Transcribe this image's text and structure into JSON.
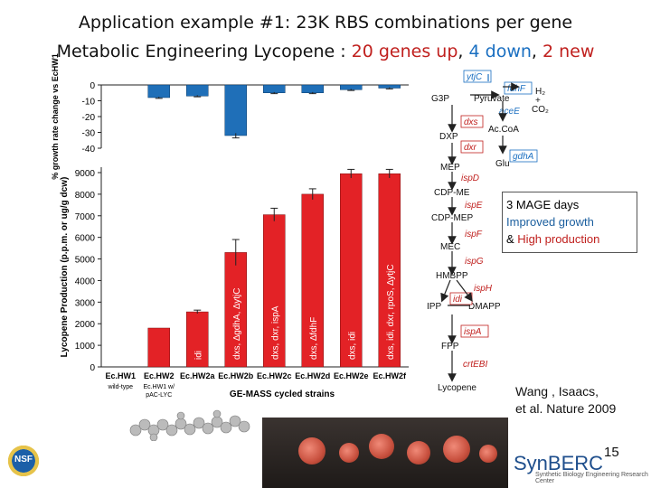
{
  "title_line1": "Application example #1:  23K RBS combinations per gene",
  "title_line2_prefix": "Metabolic Engineering  Lycopene : ",
  "title_line2_up": "20 genes up",
  "title_line2_sep1": ", ",
  "title_line2_down": "4 down",
  "title_line2_sep2": ", ",
  "title_line2_new": "2 new",
  "mage_box": {
    "line1": "3 MAGE days",
    "line2": "Improved growth",
    "line3_amp": "& ",
    "line3": "High production"
  },
  "citation": {
    "line1": "Wang , Isaacs,",
    "line2": "et al.  Nature 2009"
  },
  "page_number": "15",
  "logo_synberc": "SynBERC",
  "logo_synberc_sub": "Synthetic Biology Engineering Research Center",
  "logo_nsf": "NSF",
  "colors": {
    "growth_bar": "#1f6fb8",
    "production_bar": "#e32226",
    "pathway_red": "#c0201e",
    "pathway_blue": "#1a6fc1"
  },
  "chart_data": [
    {
      "type": "bar",
      "ylabel": "% growth rate change vs EcHW1",
      "ylim": [
        -40,
        0
      ],
      "yticks": [
        "0",
        "-10",
        "-20",
        "-30",
        "-40"
      ],
      "categories": [
        "Ec.HW1",
        "Ec.HW2",
        "Ec.HW2a",
        "Ec.HW2b",
        "Ec.HW2c",
        "Ec.HW2d",
        "Ec.HW2e",
        "Ec.HW2f"
      ],
      "values": [
        null,
        -8,
        -7,
        -32,
        -5,
        -5,
        -3,
        -2
      ],
      "error": [
        null,
        0.5,
        0.5,
        1.5,
        0.5,
        0.5,
        0.5,
        0.5
      ],
      "color": "#1f6fb8"
    },
    {
      "type": "bar",
      "ylabel": "Lycopene Production (p.p.m. or ug/g dcw)",
      "xlabel": "GE-MASS cycled strains",
      "ylim": [
        0,
        9000
      ],
      "yticks": [
        "0",
        "1000",
        "2000",
        "3000",
        "4000",
        "5000",
        "6000",
        "7000",
        "8000",
        "9000"
      ],
      "categories": [
        "Ec.HW1",
        "Ec.HW2",
        "Ec.HW2a",
        "Ec.HW2b",
        "Ec.HW2c",
        "Ec.HW2d",
        "Ec.HW2e",
        "Ec.HW2f"
      ],
      "sublabels": [
        "wild-type",
        "Ec.HW1 w/ pAC-LYC",
        "",
        "",
        "",
        "",
        "",
        ""
      ],
      "values": [
        0,
        1800,
        2550,
        5300,
        7050,
        8000,
        8950,
        8950
      ],
      "error": [
        0,
        0,
        80,
        600,
        300,
        250,
        200,
        200
      ],
      "bar_labels": [
        "",
        "",
        "idi",
        "dxs, ∆gdhA, ∆ytjC",
        "dxs, dxr, ispA",
        "dxs, ∆fdhF",
        "dxs, idi",
        "dxs, idi, dxr, rpoS, ∆ytjC"
      ],
      "color": "#e32226"
    }
  ],
  "pathway": {
    "nodes": [
      "G3P",
      "Pyruvate",
      "DXP",
      "Ac.CoA",
      "Glu",
      "MEP",
      "CDP-ME",
      "CDP-MEP",
      "MEC",
      "HMBPP",
      "IPP",
      "DMAPP",
      "FPP",
      "Lycopene",
      "H₂",
      "CO₂",
      "+"
    ],
    "enzymes_red": [
      "dxs",
      "dxr",
      "ispD",
      "ispE",
      "ispF",
      "ispG",
      "ispH",
      "idi",
      "ispA",
      "crtEBI"
    ],
    "enzymes_blue": [
      "ytjC",
      "fdhF",
      "aceE",
      "gdhA"
    ]
  }
}
